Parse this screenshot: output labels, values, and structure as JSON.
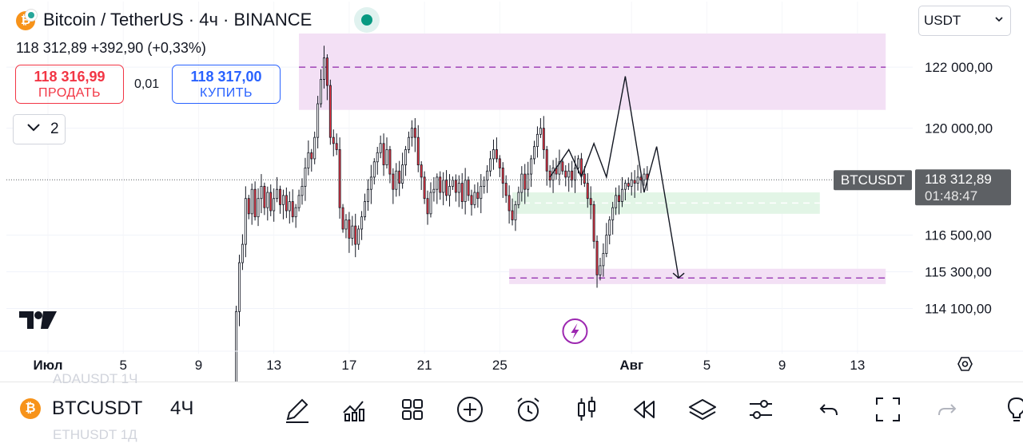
{
  "header": {
    "title": "Bitcoin / TetherUS · 4ч · BINANCE",
    "price_summary": "118 312,89  +392,90 (+0,33%)",
    "sell_price": "118 316,99",
    "sell_label": "ПРОДАТЬ",
    "spread": "0,01",
    "buy_price": "118 317,00",
    "buy_label": "КУПИТЬ",
    "indicators_count": "2",
    "currency": "USDT"
  },
  "toolbar": {
    "symbol": "BTCUSDT",
    "interval": "4Ч",
    "ghost_above": "ADAUSDT   1Ч",
    "ghost_below": "ETHUSDT   1Д",
    "icons": [
      "pen-icon",
      "indicators-icon",
      "layout-grid-icon",
      "add-icon",
      "alert-clock-icon",
      "candles-icon",
      "replay-icon",
      "layers-icon",
      "settings-sliders-icon",
      "undo-icon",
      "fullscreen-icon",
      "redo-icon",
      "lightbulb-icon"
    ]
  },
  "colors": {
    "up": "#089981",
    "down": "#f23645",
    "purple_zone": "#f3e0f5",
    "green_zone": "#e2f5e6",
    "dashed_purple": "#8e24aa",
    "price_tag": "#5d6064"
  },
  "chart_data": {
    "type": "candlestick",
    "symbol_tag": "BTCUSDT",
    "last_price": "118 312,89",
    "countdown": "01:48:47",
    "ylim": [
      113600,
      123100
    ],
    "y_ticks": [
      {
        "value": 122000,
        "label": "122 000,00"
      },
      {
        "value": 120000,
        "label": "120 000,00"
      },
      {
        "value": 116500,
        "label": "116 500,00"
      },
      {
        "value": 115300,
        "label": "115 300,00"
      },
      {
        "value": 114100,
        "label": "114 100,00"
      }
    ],
    "xlim": [
      "2025-07-01",
      "2025-08-15"
    ],
    "x_ticks": [
      {
        "date": "2025-07-01",
        "label": "Июл"
      },
      {
        "date": "2025-07-05",
        "label": "5"
      },
      {
        "date": "2025-07-09",
        "label": "9"
      },
      {
        "date": "2025-07-13",
        "label": "13"
      },
      {
        "date": "2025-07-17",
        "label": "17"
      },
      {
        "date": "2025-07-21",
        "label": "21"
      },
      {
        "date": "2025-07-25",
        "label": "25"
      },
      {
        "date": "2025-08-01",
        "label": "Авг"
      },
      {
        "date": "2025-08-05",
        "label": "5"
      },
      {
        "date": "2025-08-09",
        "label": "9"
      },
      {
        "date": "2025-08-13",
        "label": "13"
      }
    ],
    "candles_start": "2025-07-10 20:00",
    "candle_hours": 4,
    "closes": [
      111300,
      114000,
      115600,
      116200,
      117700,
      117200,
      118000,
      117100,
      117700,
      118100,
      117400,
      117900,
      117300,
      117700,
      118000,
      117500,
      117800,
      117300,
      117600,
      117100,
      117400,
      117800,
      118100,
      118700,
      119200,
      119000,
      119700,
      120800,
      121600,
      122300,
      121400,
      119700,
      119500,
      119300,
      117400,
      116700,
      117000,
      116400,
      116800,
      116200,
      116700,
      117100,
      117600,
      118000,
      118400,
      118900,
      119200,
      119500,
      118800,
      119300,
      118500,
      118000,
      118600,
      118200,
      118800,
      119300,
      119700,
      120000,
      119700,
      118800,
      118400,
      117700,
      117200,
      117900,
      118000,
      118400,
      117900,
      118300,
      117800,
      118100,
      118300,
      117900,
      118200,
      117600,
      118300,
      117800,
      117500,
      117900,
      117700,
      118100,
      118300,
      118600,
      119000,
      119300,
      119000,
      118700,
      118200,
      117800,
      117300,
      117000,
      117500,
      117900,
      118500,
      118000,
      118500,
      119000,
      119400,
      119800,
      120000,
      119300,
      118600,
      118300,
      118700,
      118500,
      118900,
      118600,
      118400,
      118600,
      118300,
      118700,
      119000,
      118500,
      118200,
      117700,
      117500,
      116300,
      115200,
      115500,
      115900,
      116500,
      117000,
      117400,
      117800,
      117600,
      118000,
      118200,
      118100,
      118300,
      118200,
      118400,
      118300,
      118500,
      118312.89
    ],
    "zones": [
      {
        "from": "2025-07-14 08:00",
        "to": "2025-08-14 12:00",
        "low": 120600,
        "high": 123100,
        "color": "#f3e0f5",
        "dashed": 122000
      },
      {
        "from": "2025-07-25 16:00",
        "to": "2025-08-11 00:00",
        "low": 117200,
        "high": 117900,
        "color": "#e2f5e6",
        "dashed": 117550
      },
      {
        "from": "2025-07-25 12:00",
        "to": "2025-08-14 12:00",
        "low": 114900,
        "high": 115400,
        "color": "#f3e0f5",
        "dashed": 115100
      }
    ],
    "projection": [
      {
        "date": "2025-07-27 16:00",
        "value": 118400
      },
      {
        "date": "2025-07-28 16:00",
        "value": 119300
      },
      {
        "date": "2025-07-29 08:00",
        "value": 118400
      },
      {
        "date": "2025-07-30 00:00",
        "value": 119500
      },
      {
        "date": "2025-07-30 16:00",
        "value": 118400
      },
      {
        "date": "2025-07-31 16:00",
        "value": 121700
      },
      {
        "date": "2025-08-01 16:00",
        "value": 117900
      },
      {
        "date": "2025-08-02 08:00",
        "value": 119400
      },
      {
        "date": "2025-08-03 12:00",
        "value": 115100
      }
    ]
  }
}
